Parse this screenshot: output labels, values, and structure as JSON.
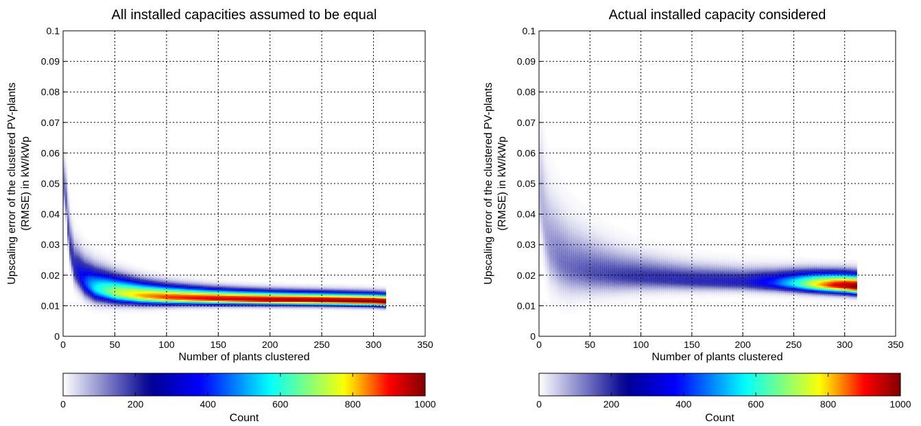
{
  "chart_data": [
    {
      "type": "heatmap",
      "title": "All installed capacities assumed to be equal",
      "xlabel": "Number of plants clustered",
      "ylabel_lines": [
        "Upscaling error of the clustered PV-plants",
        "(RMSE) in kW/kWp"
      ],
      "xlim": [
        0,
        350
      ],
      "ylim": [
        0,
        0.1
      ],
      "x_ticks": [
        "0",
        "50",
        "100",
        "150",
        "200",
        "250",
        "300",
        "350"
      ],
      "y_ticks": [
        "0",
        "0.01",
        "0.02",
        "0.03",
        "0.04",
        "0.05",
        "0.06",
        "0.07",
        "0.08",
        "0.09",
        "0.1"
      ],
      "grid": true,
      "density_ridge": {
        "x": [
          1,
          5,
          10,
          20,
          30,
          50,
          75,
          100,
          150,
          200,
          250,
          300,
          310
        ],
        "y": [
          0.048,
          0.03,
          0.022,
          0.0175,
          0.0155,
          0.014,
          0.013,
          0.0125,
          0.012,
          0.0117,
          0.0115,
          0.0112,
          0.011
        ]
      },
      "peak_counts_along_x": {
        "x": [
          1,
          10,
          20,
          30,
          50,
          75,
          100,
          150,
          200,
          250,
          300,
          310
        ],
        "count": [
          200,
          280,
          420,
          560,
          720,
          820,
          880,
          930,
          960,
          980,
          990,
          1000
        ]
      },
      "colorbar": {
        "label": "Count",
        "range": [
          0,
          1000
        ],
        "ticks": [
          "0",
          "200",
          "400",
          "600",
          "800",
          "1000"
        ],
        "colormap": [
          "#ffffff",
          "#00008f",
          "#0000ff",
          "#00ffff",
          "#ffff00",
          "#ff0000",
          "#800000"
        ]
      }
    },
    {
      "type": "heatmap",
      "title": "Actual installed capacity considered",
      "xlabel": "Number of plants clustered",
      "ylabel_lines": [
        "Upscaling error of the clustered PV-plants",
        "(RMSE) in kW/kWp"
      ],
      "xlim": [
        0,
        350
      ],
      "ylim": [
        0,
        0.1
      ],
      "x_ticks": [
        "0",
        "50",
        "100",
        "150",
        "200",
        "250",
        "300",
        "350"
      ],
      "y_ticks": [
        "0",
        "0.01",
        "0.02",
        "0.03",
        "0.04",
        "0.05",
        "0.06",
        "0.07",
        "0.08",
        "0.09",
        "0.1"
      ],
      "grid": true,
      "density_ridge": {
        "x": [
          1,
          5,
          10,
          20,
          30,
          50,
          75,
          100,
          150,
          200,
          250,
          300,
          310
        ],
        "y": [
          0.045,
          0.034,
          0.028,
          0.024,
          0.022,
          0.0205,
          0.0195,
          0.019,
          0.018,
          0.0175,
          0.017,
          0.0163,
          0.016
        ]
      },
      "peak_counts_along_x": {
        "x": [
          1,
          10,
          20,
          50,
          100,
          150,
          200,
          230,
          250,
          270,
          290,
          310
        ],
        "count": [
          120,
          160,
          190,
          220,
          250,
          270,
          300,
          420,
          580,
          780,
          920,
          1000
        ]
      },
      "colorbar": {
        "label": "Count",
        "range": [
          0,
          1000
        ],
        "ticks": [
          "0",
          "200",
          "400",
          "600",
          "800",
          "1000"
        ],
        "colormap": [
          "#ffffff",
          "#00008f",
          "#0000ff",
          "#00ffff",
          "#ffff00",
          "#ff0000",
          "#800000"
        ]
      }
    }
  ]
}
